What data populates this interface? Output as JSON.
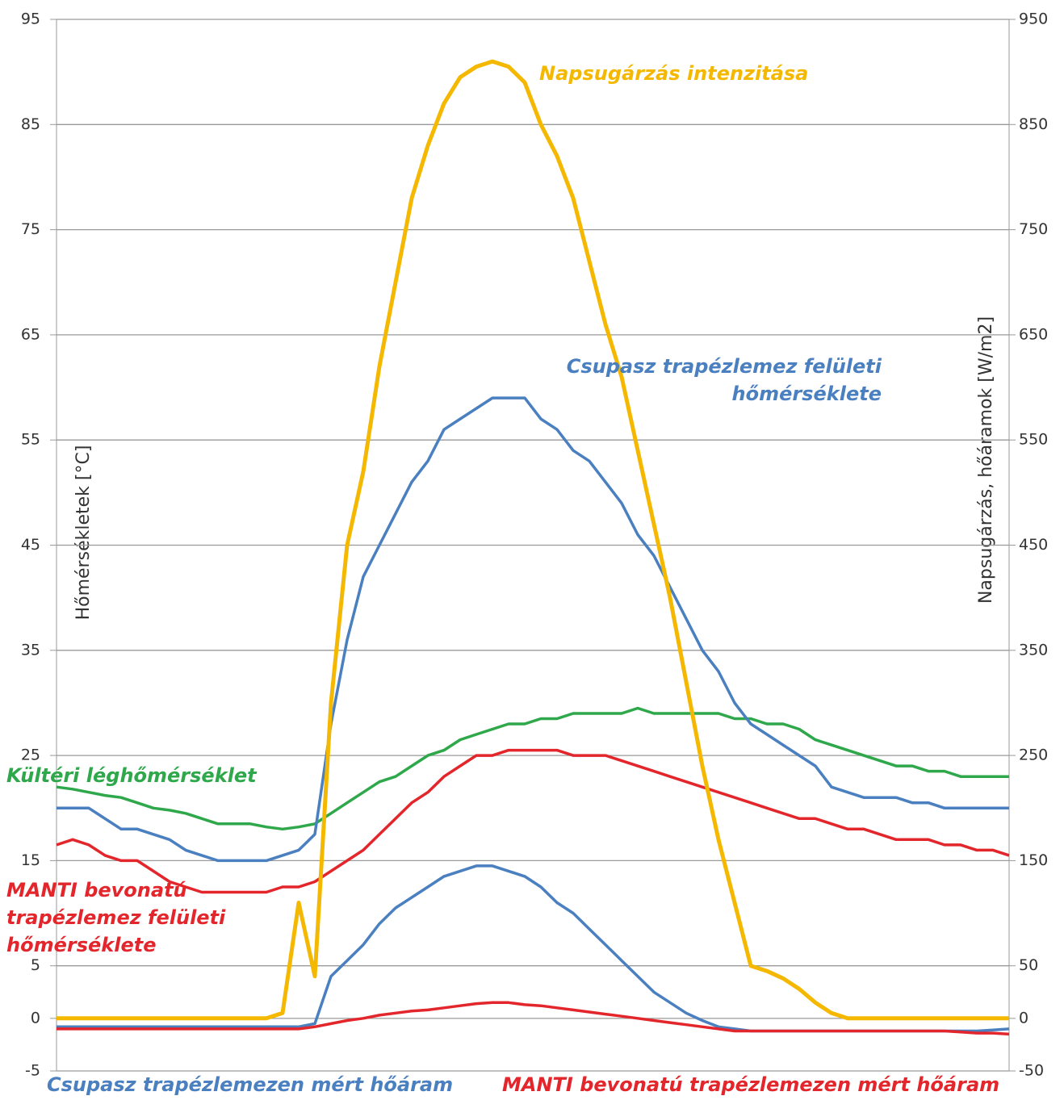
{
  "chart_data": {
    "type": "line",
    "y_label": "Hőmérsékletek [°C]",
    "y2_label": "Napsugárzás, hőáramok [W/m2]",
    "ylim": [
      -5,
      95
    ],
    "yticks": [
      -5,
      0,
      5,
      15,
      25,
      35,
      45,
      55,
      65,
      75,
      85,
      95
    ],
    "y2lim": [
      -50,
      950
    ],
    "y2ticks": [
      -50,
      0,
      50,
      150,
      250,
      350,
      450,
      550,
      650,
      750,
      850,
      950
    ],
    "grid": true,
    "categories": [
      null,
      null,
      null,
      null,
      null,
      null,
      null,
      null,
      null,
      null,
      null,
      null,
      null,
      null,
      null,
      null,
      null,
      null,
      null,
      null,
      null,
      null,
      null,
      null,
      null,
      null,
      null,
      null,
      null,
      null,
      null,
      null,
      null,
      null,
      null,
      null,
      null,
      null,
      null,
      null,
      null,
      null,
      null,
      null,
      null,
      null,
      null,
      null,
      null,
      null,
      null,
      null,
      null,
      null,
      null,
      null,
      null,
      null,
      null,
      null
    ],
    "series": [
      {
        "name": "Napsugárzás intenzitása",
        "color": "#f5b800",
        "axis": "y2",
        "values": [
          0,
          0,
          0,
          0,
          0,
          0,
          0,
          0,
          0,
          0,
          0,
          0,
          0,
          0,
          5,
          110,
          40,
          300,
          450,
          520,
          620,
          700,
          780,
          830,
          870,
          895,
          905,
          910,
          905,
          890,
          850,
          820,
          780,
          720,
          660,
          610,
          540,
          470,
          400,
          320,
          240,
          170,
          110,
          50,
          45,
          38,
          28,
          15,
          5,
          0,
          0,
          0,
          0,
          0,
          0,
          0,
          0,
          0,
          0,
          0
        ]
      },
      {
        "name": "Csupasz trapézlemez felületi hőmérséklete",
        "color": "#4a7fc0",
        "values": [
          20,
          20,
          20,
          19,
          18,
          18,
          17.5,
          17,
          16,
          15.5,
          15,
          15,
          15,
          15,
          15.5,
          16,
          17.5,
          28,
          36,
          42,
          45,
          48,
          51,
          53,
          56,
          57,
          58,
          59,
          59,
          59,
          57,
          56,
          54,
          53,
          51,
          49,
          46,
          44,
          41,
          38,
          35,
          33,
          30,
          28,
          27,
          26,
          25,
          24,
          22,
          21.5,
          21,
          21,
          21,
          20.5,
          20.5,
          20,
          20,
          20,
          20,
          20
        ]
      },
      {
        "name": "Kültéri léghőmérséklet",
        "color": "#2ea84a",
        "values": [
          22,
          21.8,
          21.5,
          21.2,
          21,
          20.5,
          20,
          19.8,
          19.5,
          19,
          18.5,
          18.5,
          18.5,
          18.2,
          18,
          18.2,
          18.5,
          19.5,
          20.5,
          21.5,
          22.5,
          23,
          24,
          25,
          25.5,
          26.5,
          27,
          27.5,
          28,
          28,
          28.5,
          28.5,
          29,
          29,
          29,
          29,
          29.5,
          29,
          29,
          29,
          29,
          29,
          28.5,
          28.5,
          28,
          28,
          27.5,
          26.5,
          26,
          25.5,
          25,
          24.5,
          24,
          24,
          23.5,
          23.5,
          23,
          23,
          23,
          23
        ]
      },
      {
        "name": "MANTI bevonatú trapézlemez felületi hőmérséklete",
        "color": "#e3262b",
        "values": [
          16.5,
          17,
          16.5,
          15.5,
          15,
          15,
          14,
          13,
          12.5,
          12,
          12,
          12,
          12,
          12,
          12.5,
          12.5,
          13,
          14,
          15,
          16,
          17.5,
          19,
          20.5,
          21.5,
          23,
          24,
          25,
          25,
          25.5,
          25.5,
          25.5,
          25.5,
          25,
          25,
          25,
          24.5,
          24,
          23.5,
          23,
          22.5,
          22,
          21.5,
          21,
          20.5,
          20,
          19.5,
          19,
          19,
          18.5,
          18,
          18,
          17.5,
          17,
          17,
          17,
          16.5,
          16.5,
          16,
          16,
          15.5
        ]
      },
      {
        "name": "Csupasz trapézlemezen mért hőáram",
        "color": "#4a7fc0",
        "axis": "y2",
        "values": [
          -8,
          -8,
          -8,
          -8,
          -8,
          -8,
          -8,
          -8,
          -8,
          -8,
          -8,
          -8,
          -8,
          -8,
          -8,
          -8,
          -5,
          40,
          55,
          70,
          90,
          105,
          115,
          125,
          135,
          140,
          145,
          145,
          140,
          135,
          125,
          110,
          100,
          85,
          70,
          55,
          40,
          25,
          15,
          5,
          -2,
          -8,
          -10,
          -12,
          -12,
          -12,
          -12,
          -12,
          -12,
          -12,
          -12,
          -12,
          -12,
          -12,
          -12,
          -12,
          -12,
          -12,
          -11,
          -10
        ]
      },
      {
        "name": "MANTI bevonatú trapézlemezen mért hőáram",
        "color": "#e3262b",
        "axis": "y2",
        "values": [
          -10,
          -10,
          -10,
          -10,
          -10,
          -10,
          -10,
          -10,
          -10,
          -10,
          -10,
          -10,
          -10,
          -10,
          -10,
          -10,
          -8,
          -5,
          -2,
          0,
          3,
          5,
          7,
          8,
          10,
          12,
          14,
          15,
          15,
          13,
          12,
          10,
          8,
          6,
          4,
          2,
          0,
          -2,
          -4,
          -6,
          -8,
          -10,
          -12,
          -12,
          -12,
          -12,
          -12,
          -12,
          -12,
          -12,
          -12,
          -12,
          -12,
          -12,
          -12,
          -12,
          -13,
          -14,
          -14,
          -15
        ]
      }
    ]
  }
}
